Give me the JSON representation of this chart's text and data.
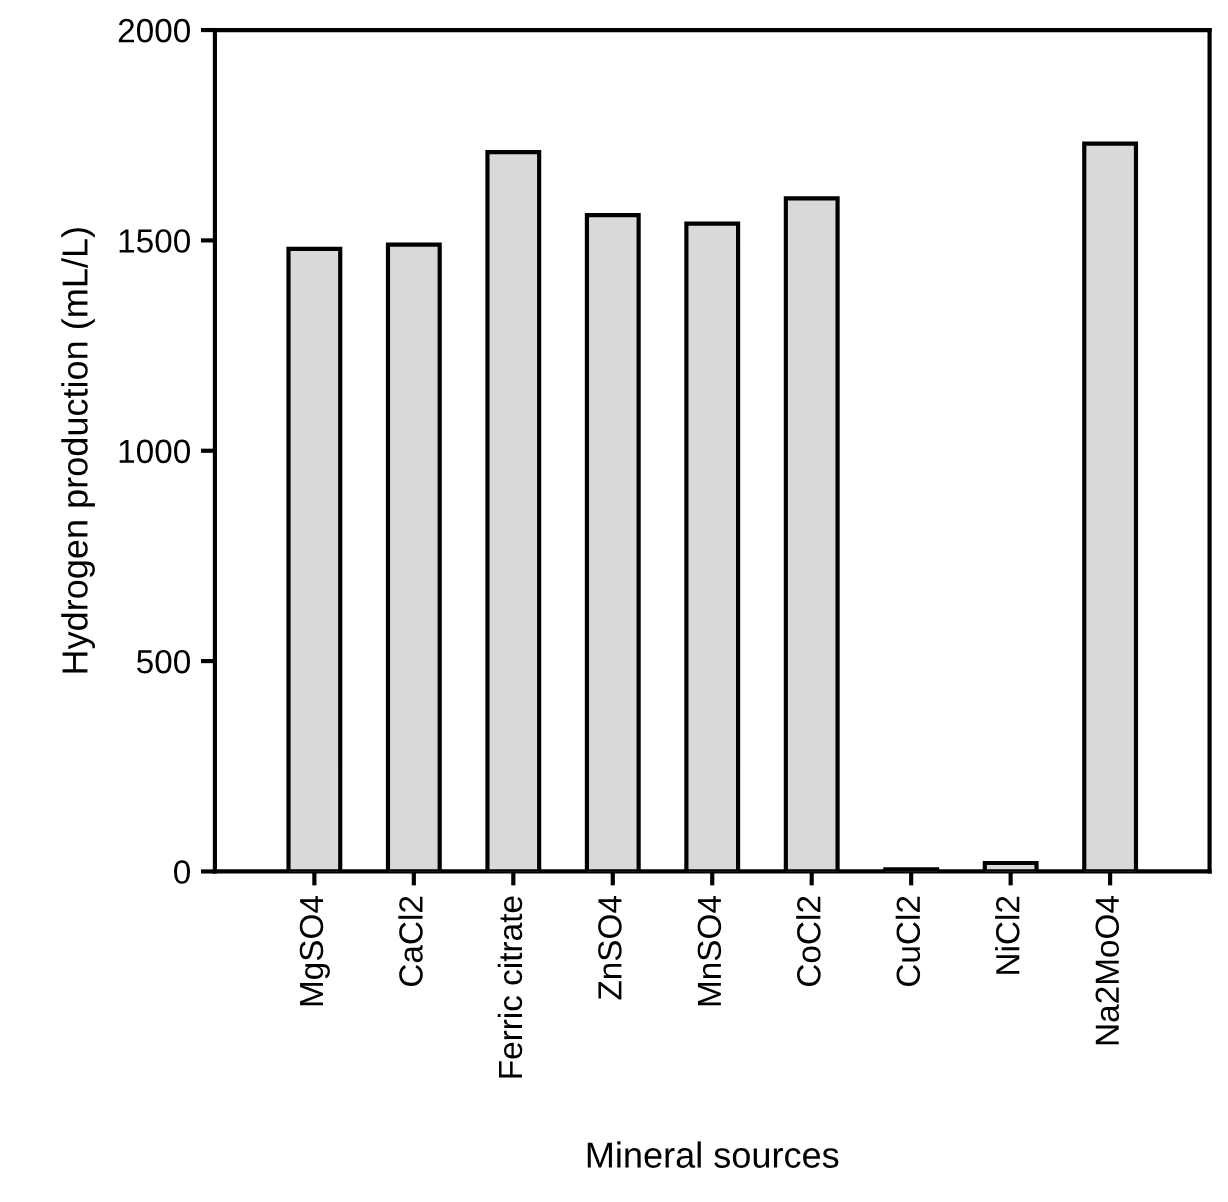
{
  "chart_data": {
    "type": "bar",
    "xlabel": "Mineral sources",
    "ylabel": "Hydrogen production (mL/L)",
    "categories": [
      "MgSO4",
      "CaCl2",
      "Ferric citrate",
      "ZnSO4",
      "MnSO4",
      "CoCl2",
      "CuCl2",
      "NiCl2",
      "Na2MoO4"
    ],
    "values": [
      1480,
      1490,
      1710,
      1560,
      1540,
      1600,
      5,
      20,
      1730
    ],
    "color": "#d9d9d9",
    "ylim": [
      0,
      2000
    ],
    "yticks": [
      0,
      500,
      1000,
      1500,
      2000
    ],
    "grid": false,
    "legend": false
  }
}
